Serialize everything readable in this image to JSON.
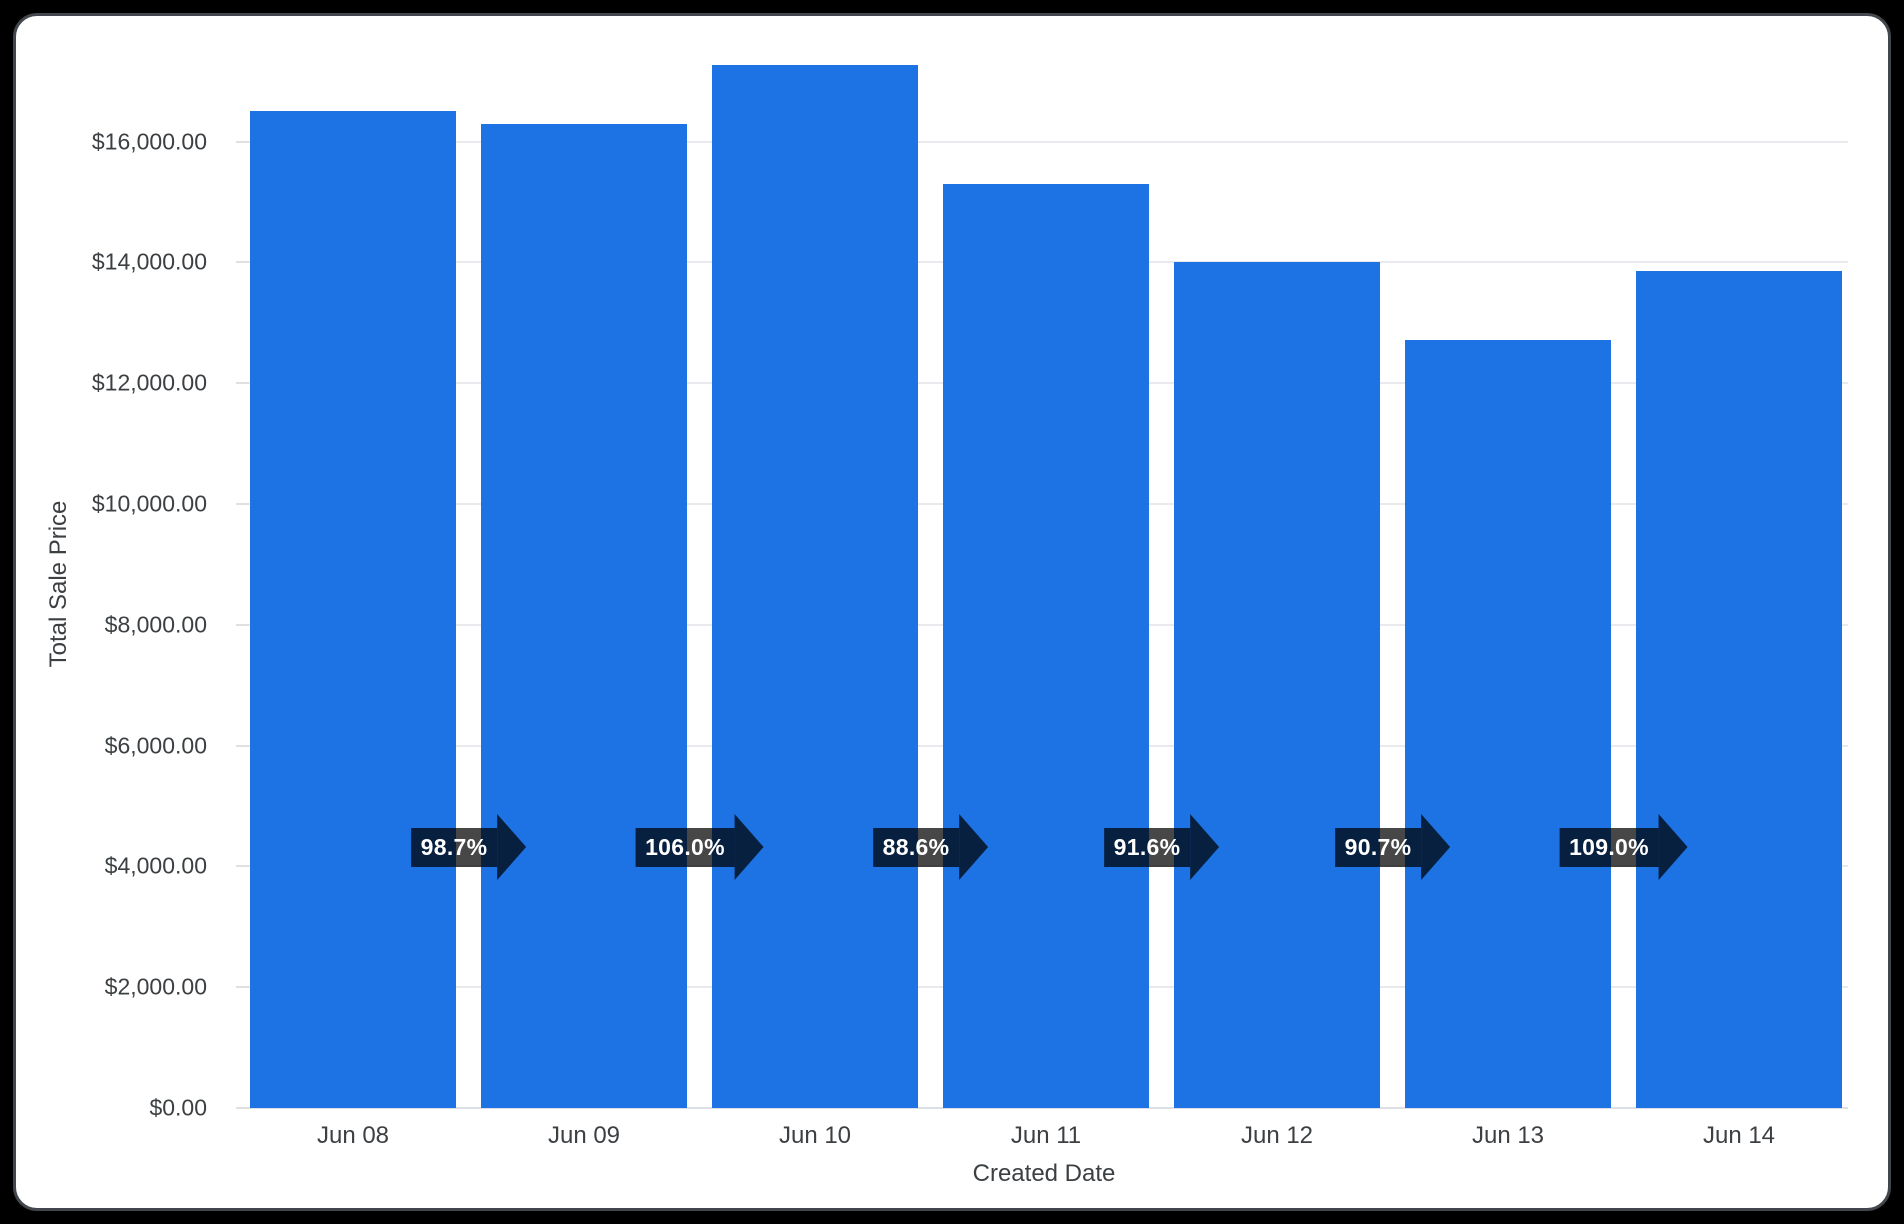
{
  "frame": {
    "background_color": "#000000",
    "card_background": "#ffffff",
    "card_border_color": "#41474c"
  },
  "chart_data": {
    "type": "bar",
    "title": "",
    "xlabel": "Created Date",
    "ylabel": "Total Sale Price",
    "categories": [
      "Jun 08",
      "Jun 09",
      "Jun 10",
      "Jun 11",
      "Jun 12",
      "Jun 13",
      "Jun 14"
    ],
    "values": [
      16500,
      16290,
      17270,
      15300,
      14010,
      12710,
      13850
    ],
    "ylim": [
      0,
      17350
    ],
    "grid": true,
    "legend": "none",
    "bar_color": "#1e73e4",
    "gridline_color": "#e9eaee",
    "tick_text_color": "#3c4043",
    "yticks": [
      {
        "value": 0,
        "label": "$0.00"
      },
      {
        "value": 2000,
        "label": "$2,000.00"
      },
      {
        "value": 4000,
        "label": "$4,000.00"
      },
      {
        "value": 6000,
        "label": "$6,000.00"
      },
      {
        "value": 8000,
        "label": "$8,000.00"
      },
      {
        "value": 10000,
        "label": "$10,000.00"
      },
      {
        "value": 12000,
        "label": "$12,000.00"
      },
      {
        "value": 14000,
        "label": "$14,000.00"
      },
      {
        "value": 16000,
        "label": "$16,000.00"
      }
    ],
    "change_badges": {
      "shape": "right-arrow",
      "background_color": "rgba(0,0,0,0.72)",
      "text_color": "#ffffff",
      "items": [
        {
          "between": [
            "Jun 08",
            "Jun 09"
          ],
          "label": "98.7%"
        },
        {
          "between": [
            "Jun 09",
            "Jun 10"
          ],
          "label": "106.0%"
        },
        {
          "between": [
            "Jun 10",
            "Jun 11"
          ],
          "label": "88.6%"
        },
        {
          "between": [
            "Jun 11",
            "Jun 12"
          ],
          "label": "91.6%"
        },
        {
          "between": [
            "Jun 12",
            "Jun 13"
          ],
          "label": "90.7%"
        },
        {
          "between": [
            "Jun 13",
            "Jun 14"
          ],
          "label": "109.0%"
        }
      ]
    }
  }
}
